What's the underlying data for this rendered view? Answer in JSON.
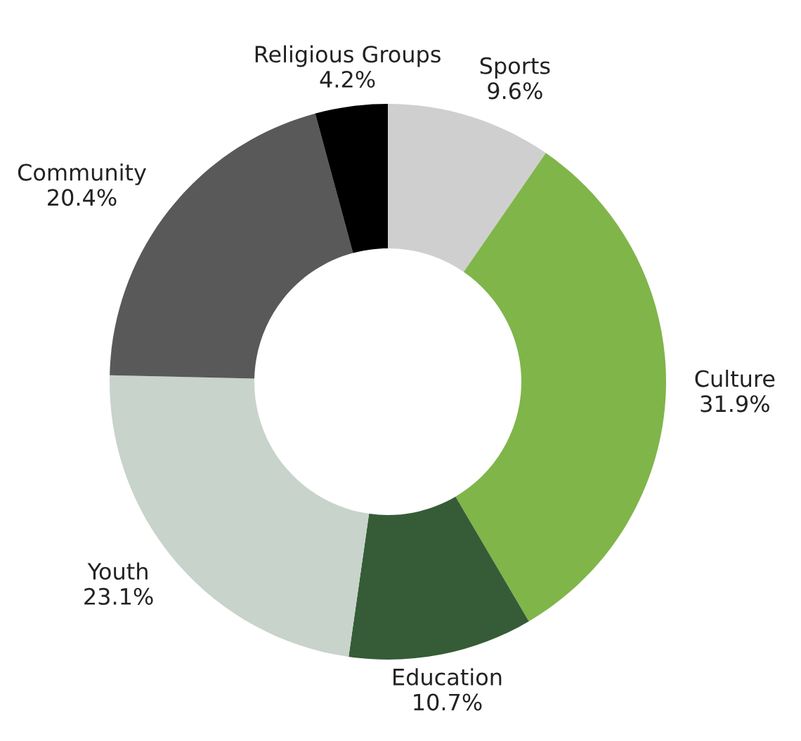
{
  "chart_data": {
    "type": "donut",
    "categories": [
      "Sports",
      "Culture",
      "Education",
      "Youth",
      "Community",
      "Religious Groups"
    ],
    "values": [
      9.6,
      31.9,
      10.7,
      23.1,
      20.4,
      4.2
    ],
    "value_labels": [
      "9.6%",
      "31.9%",
      "10.7%",
      "23.1%",
      "20.4%",
      "4.2%"
    ],
    "colors": [
      "#d0cfd0",
      "#80b54a",
      "#365c37",
      "#c8d3cb",
      "#595959",
      "#000000"
    ],
    "legend": false
  }
}
